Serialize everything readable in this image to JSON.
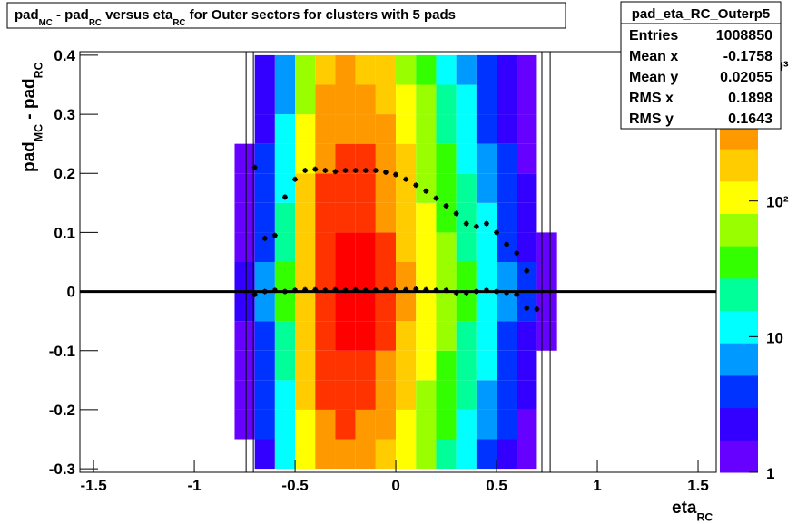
{
  "chart_data": {
    "type": "heatmap",
    "title": [
      {
        "text": "pad"
      },
      {
        "text": "MC",
        "sub": true
      },
      {
        "text": " - pad"
      },
      {
        "text": "RC",
        "sub": true
      },
      {
        "text": " versus eta"
      },
      {
        "text": "RC",
        "sub": true
      },
      {
        "text": " for Outer sectors for clusters with 5 pads"
      }
    ],
    "xlabel": [
      {
        "text": "eta"
      },
      {
        "text": "RC",
        "sub": true
      }
    ],
    "ylabel": [
      {
        "text": "pad"
      },
      {
        "text": "MC",
        "sub": true
      },
      {
        "text": " - pad"
      },
      {
        "text": "RC",
        "sub": true
      }
    ],
    "xlim": [
      -1.568,
      1.59
    ],
    "ylim": [
      -0.306,
      0.406
    ],
    "xticks": [
      -1.5,
      -1,
      -0.5,
      0,
      0.5,
      1,
      1.5
    ],
    "yticks": [
      -0.3,
      -0.2,
      -0.1,
      0,
      0.1,
      0.2,
      0.3,
      0.4
    ],
    "zlim": [
      1,
      1260
    ],
    "zlog": true,
    "zticks": [
      1,
      10,
      {
        "value": 100,
        "label": "10²"
      },
      {
        "value": 1000,
        "label": "10³"
      }
    ],
    "palette": [
      "#6600ff",
      "#3300ff",
      "#0033ff",
      "#0099ff",
      "#00ffff",
      "#00ff99",
      "#33ff00",
      "#99ff00",
      "#ffff00",
      "#ffcc00",
      "#ff9900",
      "#ff3300",
      "#ff0000"
    ],
    "xbins": [
      -0.8,
      -0.7,
      -0.6,
      -0.5,
      -0.4,
      -0.3,
      -0.2,
      -0.1,
      0,
      0.1,
      0.2,
      0.3,
      0.4,
      0.5,
      0.6,
      0.7,
      0.8
    ],
    "ybins": [
      -0.3,
      -0.25,
      -0.2,
      -0.15,
      -0.1,
      -0.05,
      0,
      0.05,
      0.1,
      0.15,
      0.2,
      0.25,
      0.3,
      0.35,
      0.4
    ],
    "z": [
      [
        0,
        2,
        10,
        100,
        320,
        380,
        330,
        230,
        120,
        60,
        25,
        12,
        5,
        2,
        1,
        0
      ],
      [
        1,
        3,
        12,
        120,
        380,
        450,
        400,
        280,
        140,
        70,
        30,
        15,
        6,
        3,
        1,
        0
      ],
      [
        1,
        3,
        15,
        150,
        450,
        600,
        500,
        330,
        170,
        80,
        35,
        18,
        8,
        3,
        2,
        0
      ],
      [
        1,
        4,
        20,
        180,
        500,
        700,
        650,
        400,
        200,
        100,
        45,
        22,
        10,
        4,
        2,
        0
      ],
      [
        1,
        5,
        25,
        200,
        550,
        800,
        750,
        450,
        220,
        120,
        55,
        25,
        12,
        5,
        2,
        1
      ],
      [
        2,
        6,
        30,
        220,
        600,
        900,
        850,
        500,
        250,
        130,
        60,
        30,
        14,
        6,
        3,
        1
      ],
      [
        2,
        6,
        30,
        220,
        600,
        900,
        850,
        500,
        250,
        130,
        60,
        30,
        14,
        6,
        3,
        1
      ],
      [
        1,
        5,
        25,
        200,
        550,
        800,
        750,
        450,
        220,
        120,
        55,
        25,
        12,
        5,
        2,
        1
      ],
      [
        1,
        4,
        20,
        180,
        500,
        700,
        650,
        400,
        200,
        100,
        45,
        22,
        10,
        4,
        2,
        0
      ],
      [
        1,
        3,
        15,
        150,
        450,
        600,
        550,
        350,
        180,
        80,
        35,
        18,
        8,
        3,
        2,
        0
      ],
      [
        1,
        3,
        12,
        120,
        400,
        500,
        450,
        300,
        150,
        70,
        30,
        15,
        6,
        3,
        1,
        0
      ],
      [
        0,
        2,
        10,
        100,
        350,
        400,
        350,
        250,
        120,
        60,
        25,
        12,
        5,
        2,
        1,
        0
      ],
      [
        0,
        2,
        8,
        80,
        300,
        350,
        300,
        200,
        100,
        50,
        20,
        10,
        4,
        2,
        1,
        0
      ],
      [
        0,
        2,
        6,
        60,
        200,
        250,
        200,
        150,
        80,
        40,
        15,
        8,
        3,
        2,
        1,
        0
      ]
    ],
    "series": [
      {
        "x": [
          -0.7,
          -0.65,
          -0.6,
          -0.55,
          -0.5,
          -0.45,
          -0.4,
          -0.35,
          -0.3,
          -0.25,
          -0.2,
          -0.15,
          -0.1,
          -0.05,
          0,
          0.05,
          0.1,
          0.15,
          0.2,
          0.25,
          0.3,
          0.35,
          0.4,
          0.45,
          0.5,
          0.55,
          0.6,
          0.65
        ],
        "values": [
          0.21,
          0.09,
          0.095,
          0.16,
          0.19,
          0.205,
          0.207,
          0.205,
          0.203,
          0.205,
          0.205,
          0.205,
          0.205,
          0.202,
          0.198,
          0.19,
          0.18,
          0.17,
          0.158,
          0.145,
          0.132,
          0.115,
          0.11,
          0.115,
          0.1,
          0.08,
          0.065,
          0.035
        ],
        "color": "#000000"
      },
      {
        "x": [
          -0.7,
          -0.65,
          -0.6,
          -0.55,
          -0.5,
          -0.45,
          -0.4,
          -0.35,
          -0.3,
          -0.25,
          -0.2,
          -0.15,
          -0.1,
          -0.05,
          0,
          0.05,
          0.1,
          0.15,
          0.2,
          0.25,
          0.3,
          0.35,
          0.4,
          0.45,
          0.5,
          0.55,
          0.6,
          0.65,
          0.7
        ],
        "values": [
          -0.005,
          0,
          0.002,
          0,
          0.002,
          0.003,
          0.003,
          0.002,
          0.003,
          0.002,
          0.003,
          0.002,
          0.002,
          0.003,
          0.002,
          0.003,
          0.004,
          0.003,
          0.002,
          0.002,
          -0.002,
          -0.002,
          0,
          0.002,
          0,
          -0.002,
          -0.005,
          -0.028,
          -0.03
        ],
        "color": "#000000"
      }
    ],
    "vlines": [
      -0.743,
      -0.707,
      0.725,
      0.766
    ],
    "hline": 0,
    "stats": {
      "name": "pad_eta_RC_Outerp5",
      "rows": [
        [
          "Entries",
          1008850
        ],
        [
          "Mean x",
          -0.1758
        ],
        [
          "Mean y",
          0.02055
        ],
        [
          "RMS x",
          0.1898
        ],
        [
          "RMS y",
          0.1643
        ]
      ]
    }
  }
}
